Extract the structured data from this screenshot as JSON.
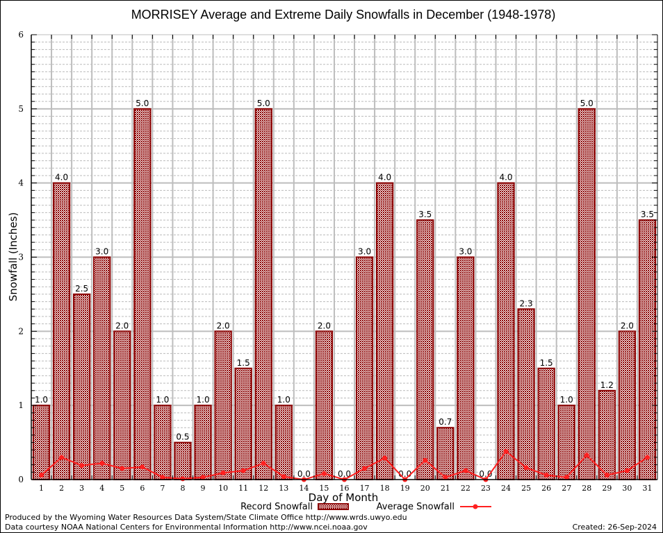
{
  "chart_data": {
    "type": "bar",
    "title": "MORRISEY Average and Extreme Daily Snowfalls in December (1948-1978)",
    "xlabel": "Day of Month",
    "ylabel": "Snowfall (Inches)",
    "ylim": [
      0,
      6
    ],
    "yticks": [
      "0",
      "1",
      "2",
      "3",
      "4",
      "5",
      "6"
    ],
    "grid": true,
    "categories": [
      "1",
      "2",
      "3",
      "4",
      "5",
      "6",
      "7",
      "8",
      "9",
      "10",
      "11",
      "12",
      "13",
      "14",
      "15",
      "16",
      "17",
      "18",
      "19",
      "20",
      "21",
      "22",
      "23",
      "24",
      "25",
      "26",
      "27",
      "28",
      "29",
      "30",
      "31"
    ],
    "series": [
      {
        "name": "Record Snowfall",
        "type": "bar",
        "color": "#8b0000",
        "values": [
          1.0,
          4.0,
          2.5,
          3.0,
          2.0,
          5.0,
          1.0,
          0.5,
          1.0,
          2.0,
          1.5,
          5.0,
          1.0,
          0.0,
          2.0,
          0.0,
          3.0,
          4.0,
          0.0,
          3.5,
          0.7,
          3.0,
          0.0,
          4.0,
          2.3,
          1.5,
          1.0,
          5.0,
          1.2,
          2.0,
          3.5
        ],
        "labels": [
          "1.0",
          "4.0",
          "2.5",
          "3.0",
          "2.0",
          "5.0",
          "1.0",
          "0.5",
          "1.0",
          "2.0",
          "1.5",
          "5.0",
          "1.0",
          "0.0",
          "2.0",
          "0.0",
          "3.0",
          "4.0",
          "0.0",
          "3.5",
          "0.7",
          "3.0",
          "0.0",
          "4.0",
          "2.3",
          "1.5",
          "1.0",
          "5.0",
          "1.2",
          "2.0",
          "3.5"
        ]
      },
      {
        "name": "Average Snowfall",
        "type": "line",
        "color": "#ff2020",
        "values": [
          0.06,
          0.3,
          0.19,
          0.22,
          0.15,
          0.17,
          0.03,
          0.01,
          0.03,
          0.09,
          0.12,
          0.22,
          0.04,
          0.0,
          0.08,
          0.0,
          0.15,
          0.29,
          0.0,
          0.26,
          0.03,
          0.12,
          0.0,
          0.38,
          0.16,
          0.06,
          0.03,
          0.33,
          0.06,
          0.12,
          0.3
        ]
      }
    ],
    "legend": {
      "placement": "bottom-center",
      "entries": [
        "Record Snowfall",
        "Average Snowfall"
      ]
    }
  },
  "footer": {
    "produced_by": "Produced by the Wyoming Water Resources Data System/State Climate Office http://www.wrds.uwyo.edu",
    "data_courtesy": "Data courtesy NOAA National Centers for Environmental Information http://www.ncei.noaa.gov",
    "created": "Created: 26-Sep-2024"
  }
}
